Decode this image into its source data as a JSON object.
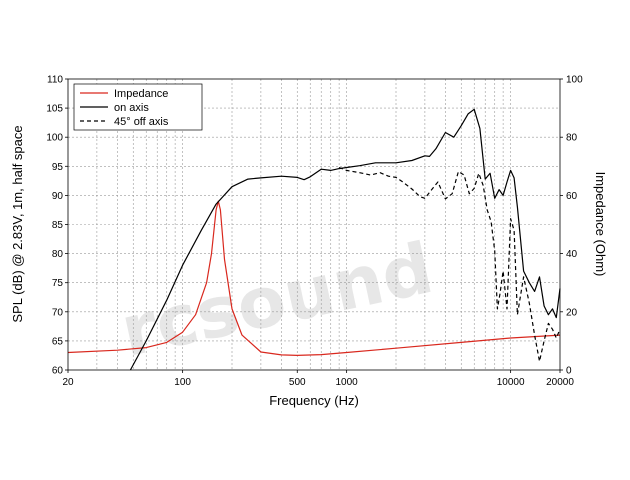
{
  "chart_data": {
    "type": "line",
    "xlabel": "Frequency (Hz)",
    "ylabel": "SPL (dB) @ 2.83V, 1m, half space",
    "y2label": "Impedance (Ohm)",
    "xscale": "log",
    "xlim": [
      20,
      20000
    ],
    "ylim": [
      60,
      110
    ],
    "y2lim": [
      0,
      100
    ],
    "grid": true,
    "legend_position": "top-left",
    "watermark": "rcsound",
    "x_ticks": [
      {
        "value": 20,
        "label": "20"
      },
      {
        "value": 100,
        "label": "100"
      },
      {
        "value": 500,
        "label": "500"
      },
      {
        "value": 1000,
        "label": "1000"
      },
      {
        "value": 10000,
        "label": "10000"
      },
      {
        "value": 20000,
        "label": "20000"
      }
    ],
    "y_ticks": [
      {
        "value": 60,
        "label": "60"
      },
      {
        "value": 65,
        "label": "65"
      },
      {
        "value": 70,
        "label": "70"
      },
      {
        "value": 75,
        "label": "75"
      },
      {
        "value": 80,
        "label": "80"
      },
      {
        "value": 85,
        "label": "85"
      },
      {
        "value": 90,
        "label": "90"
      },
      {
        "value": 95,
        "label": "95"
      },
      {
        "value": 100,
        "label": "100"
      },
      {
        "value": 105,
        "label": "105"
      },
      {
        "value": 110,
        "label": "110"
      }
    ],
    "y2_ticks": [
      {
        "value": 0,
        "label": "0"
      },
      {
        "value": 20,
        "label": "20"
      },
      {
        "value": 40,
        "label": "40"
      },
      {
        "value": 60,
        "label": "60"
      },
      {
        "value": 80,
        "label": "80"
      },
      {
        "value": 100,
        "label": "100"
      }
    ],
    "series": [
      {
        "name": "Impedance",
        "axis": "right",
        "color": "#d9281e",
        "dash": "solid",
        "x": [
          20,
          40,
          60,
          80,
          100,
          120,
          140,
          150,
          160,
          165,
          170,
          180,
          200,
          230,
          300,
          400,
          500,
          700,
          1000,
          2000,
          5000,
          10000,
          20000
        ],
        "y": [
          6.0,
          6.8,
          7.7,
          9.5,
          13,
          19,
          30,
          40,
          55,
          58,
          55,
          38,
          21,
          12,
          6.2,
          5.2,
          5.0,
          5.3,
          6.0,
          7.5,
          9.5,
          11,
          12
        ]
      },
      {
        "name": "on axis",
        "axis": "left",
        "color": "#000000",
        "dash": "solid",
        "x": [
          48,
          60,
          80,
          100,
          130,
          160,
          200,
          250,
          300,
          400,
          500,
          550,
          600,
          700,
          800,
          900,
          1000,
          1200,
          1500,
          2000,
          2500,
          3000,
          3200,
          3500,
          4000,
          4500,
          5000,
          5500,
          6000,
          6500,
          7000,
          7500,
          8000,
          8500,
          9000,
          9500,
          10000,
          10500,
          11000,
          12000,
          13000,
          14000,
          15000,
          16000,
          17000,
          18000,
          19000,
          20000
        ],
        "y": [
          60,
          65,
          72,
          78,
          84,
          88.5,
          91.5,
          92.8,
          93,
          93.3,
          93.1,
          92.7,
          93.2,
          94.5,
          94.3,
          94.6,
          94.8,
          95.1,
          95.6,
          95.6,
          96,
          96.8,
          96.7,
          98,
          100.8,
          100,
          102,
          104,
          104.8,
          101.5,
          92.8,
          93.8,
          89.5,
          91,
          90,
          92.3,
          94.3,
          93,
          88,
          77,
          75,
          73.5,
          76,
          71,
          69.5,
          70.5,
          69,
          74
        ]
      },
      {
        "name": "45° off axis",
        "axis": "left",
        "color": "#000000",
        "dash": "dashed",
        "x": [
          900,
          1000,
          1200,
          1400,
          1600,
          1800,
          2000,
          2200,
          2500,
          2800,
          3000,
          3300,
          3600,
          4000,
          4400,
          4800,
          5200,
          5600,
          6000,
          6400,
          6800,
          7200,
          7600,
          8000,
          8300,
          8600,
          9000,
          9500,
          10000,
          10500,
          11000,
          12000,
          13000,
          14000,
          15000,
          16000,
          17000,
          18000,
          19000,
          20000
        ],
        "y": [
          94.8,
          94.3,
          93.9,
          93.5,
          93.9,
          93.3,
          93.1,
          92.3,
          91.1,
          89.8,
          89.5,
          91,
          92.3,
          89.4,
          90.3,
          94.1,
          93.5,
          90.3,
          91.2,
          93.8,
          91.7,
          87.5,
          85.5,
          80.5,
          70.5,
          73,
          77,
          70.5,
          86,
          84,
          69.5,
          76,
          71.5,
          66,
          61.5,
          65,
          68,
          67,
          65.5,
          67
        ]
      }
    ]
  }
}
